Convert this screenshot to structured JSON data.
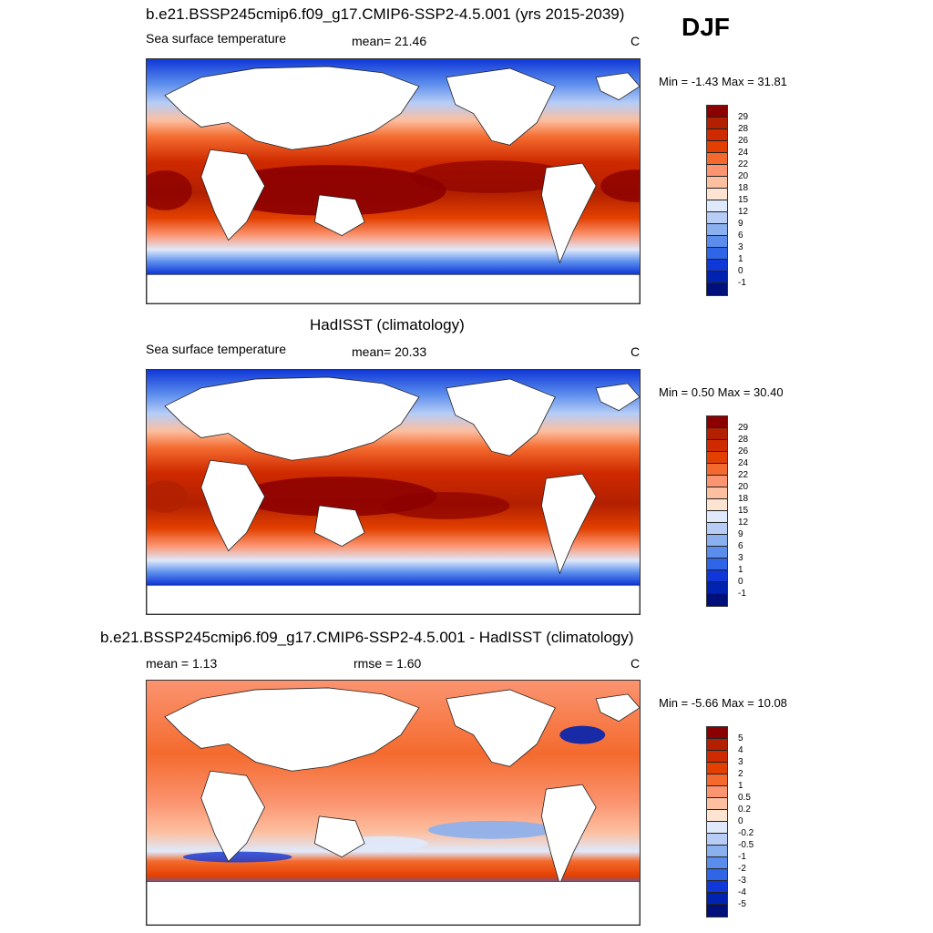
{
  "season": "DJF",
  "panels": [
    {
      "title": "b.e21.BSSP245cmip6.f09_g17.CMIP6-SSP2-4.5.001 (yrs 2015-2039)",
      "left_text": "Sea surface temperature",
      "center_text": "mean=  21.46",
      "units": "C",
      "minmax": "Min =  -1.43 Max =  31.81",
      "colorbar_labels": [
        "29",
        "28",
        "26",
        "24",
        "22",
        "20",
        "18",
        "15",
        "12",
        "9",
        "6",
        "3",
        "1",
        "0",
        "-1"
      ]
    },
    {
      "title": "HadISST (climatology)",
      "left_text": "Sea surface temperature",
      "center_text": "mean=  20.33",
      "units": "C",
      "minmax": "Min =   0.50 Max =  30.40",
      "colorbar_labels": [
        "29",
        "28",
        "26",
        "24",
        "22",
        "20",
        "18",
        "15",
        "12",
        "9",
        "6",
        "3",
        "1",
        "0",
        "-1"
      ]
    },
    {
      "title": "b.e21.BSSP245cmip6.f09_g17.CMIP6-SSP2-4.5.001 - HadISST (climatology)",
      "left_text": "mean =   1.13",
      "center_text": "rmse =   1.60",
      "units": "C",
      "minmax": "Min =  -5.66 Max =  10.08",
      "colorbar_labels": [
        "5",
        "4",
        "3",
        "2",
        "1",
        "0.5",
        "0.2",
        "0",
        "-0.2",
        "-0.5",
        "-1",
        "-2",
        "-3",
        "-4",
        "-5"
      ]
    }
  ],
  "palette": [
    "#8b0000",
    "#b22000",
    "#cf2a00",
    "#e34000",
    "#f46a2e",
    "#fb9470",
    "#fcbfa0",
    "#fde3d2",
    "#dfe9fb",
    "#b7cdf6",
    "#8ab0f0",
    "#5b8ded",
    "#2f66e8",
    "#1038d8",
    "#0022b0",
    "#00107a"
  ]
}
